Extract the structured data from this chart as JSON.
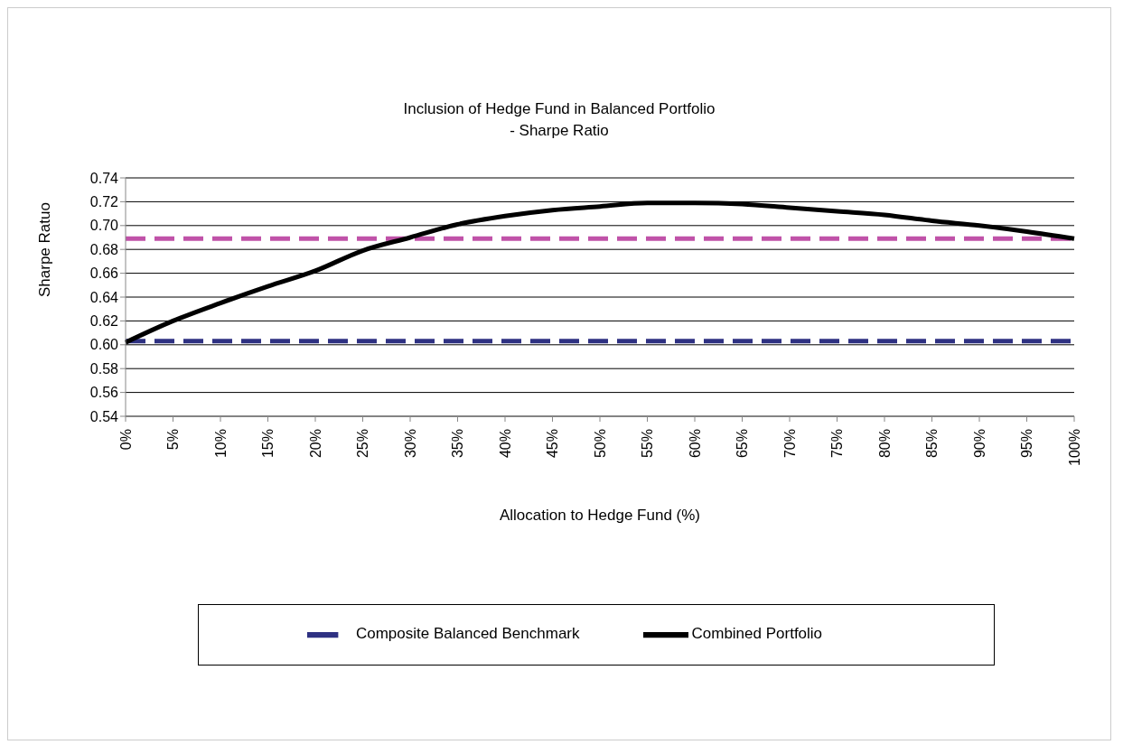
{
  "chart_data": {
    "type": "line",
    "title": "Inclusion of Hedge Fund in Balanced Portfolio",
    "subtitle": "- Sharpe Ratio",
    "xlabel": "Allocation to Hedge Fund (%)",
    "ylabel": "Sharpe Ratuo",
    "categories": [
      "0%",
      "5%",
      "10%",
      "15%",
      "20%",
      "25%",
      "30%",
      "35%",
      "40%",
      "45%",
      "50%",
      "55%",
      "60%",
      "65%",
      "70%",
      "75%",
      "80%",
      "85%",
      "90%",
      "95%",
      "100%"
    ],
    "series": [
      {
        "name": "Composite Balanced Benchmark",
        "color": "#2e3182",
        "line_style": "dashed",
        "values": [
          0.603,
          0.603,
          0.603,
          0.603,
          0.603,
          0.603,
          0.603,
          0.603,
          0.603,
          0.603,
          0.603,
          0.603,
          0.603,
          0.603,
          0.603,
          0.603,
          0.603,
          0.603,
          0.603,
          0.603,
          0.603
        ]
      },
      {
        "color": "#c052a8",
        "line_style": "dashed",
        "values": [
          0.689,
          0.689,
          0.689,
          0.689,
          0.689,
          0.689,
          0.689,
          0.689,
          0.689,
          0.689,
          0.689,
          0.689,
          0.689,
          0.689,
          0.689,
          0.689,
          0.689,
          0.689,
          0.689,
          0.689,
          0.689
        ]
      },
      {
        "name": "Combined Portfolio",
        "color": "#000000",
        "line_style": "solid",
        "values": [
          0.602,
          0.62,
          0.635,
          0.649,
          0.662,
          0.679,
          0.69,
          0.701,
          0.708,
          0.713,
          0.716,
          0.719,
          0.719,
          0.718,
          0.715,
          0.712,
          0.709,
          0.704,
          0.7,
          0.695,
          0.689
        ]
      }
    ],
    "ylim": [
      0.54,
      0.74
    ],
    "yticks": [
      {
        "value": 0.54,
        "label": "0.54"
      },
      {
        "value": 0.56,
        "label": "0.56"
      },
      {
        "value": 0.58,
        "label": "0.58"
      },
      {
        "value": 0.6,
        "label": "0.60"
      },
      {
        "value": 0.62,
        "label": "0.62"
      },
      {
        "value": 0.64,
        "label": "0.64"
      },
      {
        "value": 0.66,
        "label": "0.66"
      },
      {
        "value": 0.68,
        "label": "0.68"
      },
      {
        "value": 0.7,
        "label": "0.70"
      },
      {
        "value": 0.72,
        "label": "0.72"
      },
      {
        "value": 0.74,
        "label": "0.74"
      }
    ],
    "grid": "y",
    "legend": "bottom",
    "marker": "none"
  }
}
